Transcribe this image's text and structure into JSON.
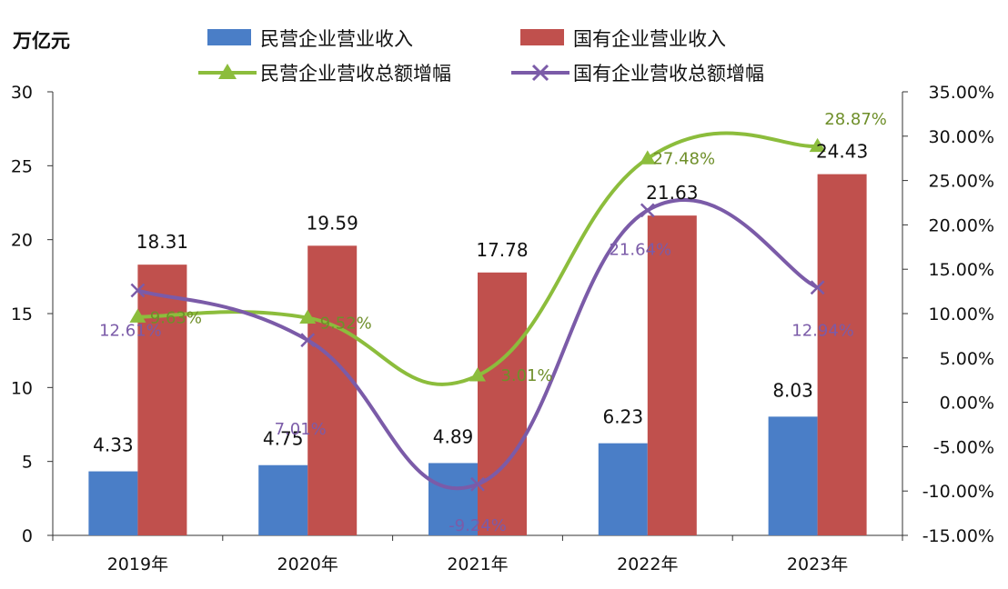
{
  "chart_data": {
    "type": "bar",
    "categories": [
      "2019年",
      "2020年",
      "2021年",
      "2022年",
      "2023年"
    ],
    "y_unit_label": "万亿元",
    "y_left_range": [
      0,
      30
    ],
    "y_left_ticks": [
      "0",
      "5",
      "10",
      "15",
      "20",
      "25",
      "30"
    ],
    "y_right_range": [
      -15,
      35
    ],
    "y_right_ticks": [
      "-15.00%",
      "-10.00%",
      "-5.00%",
      "0.00%",
      "5.00%",
      "10.00%",
      "15.00%",
      "20.00%",
      "25.00%",
      "30.00%",
      "35.00%"
    ],
    "series": [
      {
        "name": "民营企业营业收入",
        "kind": "bar",
        "axis": "left",
        "color": "#4a7ec7",
        "values": [
          4.33,
          4.75,
          4.89,
          6.23,
          8.03
        ],
        "labels": [
          "4.33",
          "4.75",
          "4.89",
          "6.23",
          "8.03"
        ]
      },
      {
        "name": "国有企业营业收入",
        "kind": "bar",
        "axis": "left",
        "color": "#c0504d",
        "values": [
          18.31,
          19.59,
          17.78,
          21.63,
          24.43
        ],
        "labels": [
          "18.31",
          "19.59",
          "17.78",
          "21.63",
          "24.43"
        ]
      },
      {
        "name": "民营企业营收总额增幅",
        "kind": "line",
        "marker": "triangle",
        "axis": "right",
        "color": "#8cbd3c",
        "label_color": "#6f8f2a",
        "values": [
          9.63,
          9.52,
          3.01,
          27.48,
          28.87
        ],
        "labels": [
          "9.63%",
          "9.52%",
          "3.01%",
          "27.48%",
          "28.87%"
        ]
      },
      {
        "name": "国有企业营收总额增幅",
        "kind": "line",
        "marker": "x",
        "axis": "right",
        "color": "#7b5ba8",
        "label_color": "#7b5ba8",
        "values": [
          12.61,
          7.01,
          -9.24,
          21.64,
          12.94
        ],
        "labels": [
          "12.61%",
          "7.01%",
          "-9.24%",
          "21.64%",
          "12.94%"
        ]
      }
    ],
    "legend_position": "top",
    "grid": false
  }
}
